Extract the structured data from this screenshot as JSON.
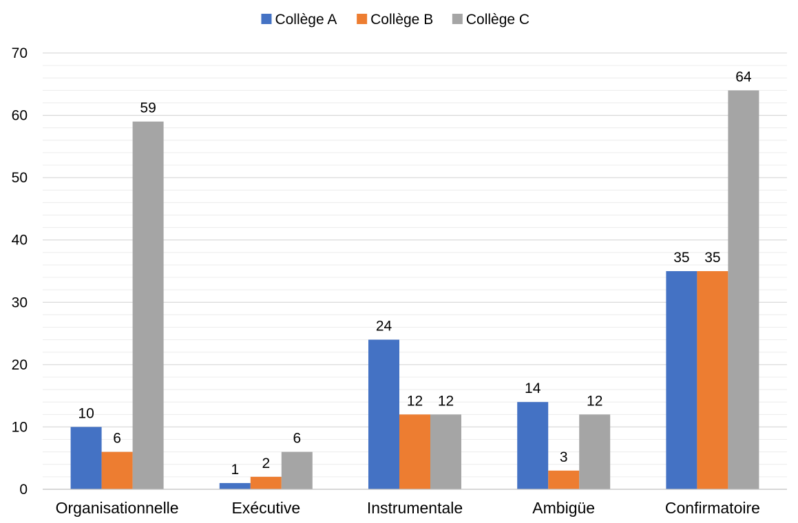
{
  "chart_data": {
    "type": "bar",
    "title": "",
    "xlabel": "",
    "ylabel": "",
    "categories": [
      "Organisationnelle",
      "Exécutive",
      "Instrumentale",
      "Ambigüe",
      "Confirmatoire"
    ],
    "series": [
      {
        "name": "Collège A",
        "color": "#4472C4",
        "values": [
          10,
          1,
          24,
          14,
          35
        ]
      },
      {
        "name": "Collège B",
        "color": "#ED7D31",
        "values": [
          6,
          2,
          12,
          3,
          35
        ]
      },
      {
        "name": "Collège C",
        "color": "#A5A5A5",
        "values": [
          59,
          6,
          12,
          12,
          64
        ]
      }
    ],
    "ylim": [
      0,
      70
    ],
    "y_ticks": [
      "0",
      "10",
      "20",
      "30",
      "40",
      "50",
      "60",
      "70"
    ],
    "legend_position": "top-center",
    "grid": true,
    "data_labels": true
  }
}
